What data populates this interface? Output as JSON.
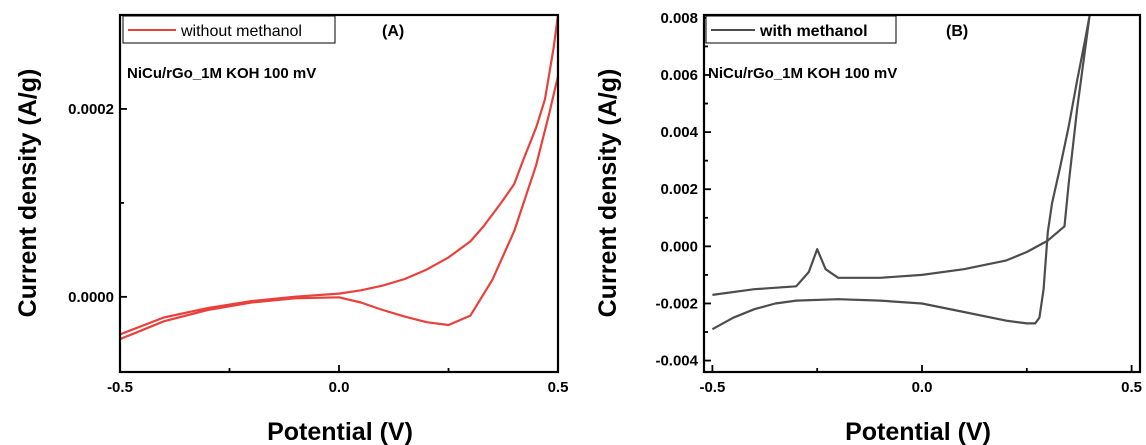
{
  "chart_data": [
    {
      "type": "line",
      "panel_label": "(A)",
      "annotation": "NiCu/rGo_1M KOH 100 mV",
      "xlabel": "Potential (V)",
      "ylabel": "Current density (A/g)",
      "xlim": [
        -0.5,
        0.5
      ],
      "ylim": [
        -8e-05,
        0.0003
      ],
      "xticks": [
        -0.5,
        0.0,
        0.5
      ],
      "xtick_labels": [
        "-0.5",
        "0.0",
        "0.5"
      ],
      "yticks": [
        0.0,
        0.0002
      ],
      "ytick_labels": [
        "0.0000",
        "0.0002"
      ],
      "legend_position": "top-left",
      "series": [
        {
          "name": "without methanol",
          "color": "#e8413c",
          "x": [
            -0.5,
            -0.4,
            -0.3,
            -0.2,
            -0.1,
            0.0,
            0.05,
            0.1,
            0.15,
            0.2,
            0.25,
            0.3,
            0.35,
            0.4,
            0.45,
            0.48,
            0.5,
            0.5,
            0.49,
            0.47,
            0.45,
            0.42,
            0.4,
            0.37,
            0.33,
            0.3,
            0.25,
            0.2,
            0.15,
            0.1,
            0.05,
            0.0,
            -0.1,
            -0.2,
            -0.3,
            -0.4,
            -0.5
          ],
          "y": [
            -4.5e-05,
            -2.6e-05,
            -1.4e-05,
            -6e-06,
            -1.5e-06,
            -5e-07,
            -6e-06,
            -1.4e-05,
            -2.1e-05,
            -2.7e-05,
            -3e-05,
            -2e-05,
            1.8e-05,
            7e-05,
            0.00014,
            0.000195,
            0.000235,
            0.0003,
            0.000265,
            0.00021,
            0.00018,
            0.000145,
            0.00012,
            0.0001,
            7.5e-05,
            5.9e-05,
            4.2e-05,
            2.9e-05,
            1.9e-05,
            1.2e-05,
            7e-06,
            3.5e-06,
            2e-07,
            -4.5e-06,
            -1.2e-05,
            -2.2e-05,
            -4e-05
          ]
        }
      ]
    },
    {
      "type": "line",
      "panel_label": "(B)",
      "annotation": "NiCu/rGo_1M KOH 100 mV",
      "xlabel": "Potential (V)",
      "ylabel": "Current density (A/g)",
      "xlim": [
        -0.52,
        0.52
      ],
      "ylim": [
        -0.0044,
        0.0081
      ],
      "xticks": [
        -0.5,
        0.0,
        0.5
      ],
      "xtick_labels": [
        "-0.5",
        "0.0",
        "0.5"
      ],
      "yticks": [
        -0.004,
        -0.002,
        0.0,
        0.002,
        0.004,
        0.006,
        0.008
      ],
      "ytick_labels": [
        "-0.004",
        "-0.002",
        "0.000",
        "0.002",
        "0.004",
        "0.006",
        "0.008"
      ],
      "legend_position": "top-left",
      "series": [
        {
          "name": "with methanol",
          "color": "#4d4d4d",
          "x": [
            -0.5,
            -0.45,
            -0.4,
            -0.35,
            -0.3,
            -0.2,
            -0.1,
            0.0,
            0.1,
            0.2,
            0.25,
            0.27,
            0.28,
            0.29,
            0.3,
            0.31,
            0.33,
            0.35,
            0.37,
            0.39,
            0.4,
            0.4,
            0.39,
            0.37,
            0.35,
            0.34,
            0.3,
            0.25,
            0.2,
            0.1,
            0.0,
            -0.1,
            -0.2,
            -0.23,
            -0.25,
            -0.27,
            -0.3,
            -0.4,
            -0.5
          ],
          "y": [
            -0.0029,
            -0.0025,
            -0.0022,
            -0.002,
            -0.0019,
            -0.00185,
            -0.0019,
            -0.002,
            -0.0023,
            -0.0026,
            -0.0027,
            -0.0027,
            -0.0025,
            -0.0015,
            0.0005,
            0.0015,
            0.0028,
            0.0042,
            0.0058,
            0.0073,
            0.0081,
            0.0081,
            0.007,
            0.0048,
            0.0022,
            0.0007,
            0.0002,
            -0.0002,
            -0.0005,
            -0.0008,
            -0.001,
            -0.0011,
            -0.0011,
            -0.0008,
            -0.0001,
            -0.0009,
            -0.0014,
            -0.0015,
            -0.0017
          ]
        }
      ]
    }
  ]
}
